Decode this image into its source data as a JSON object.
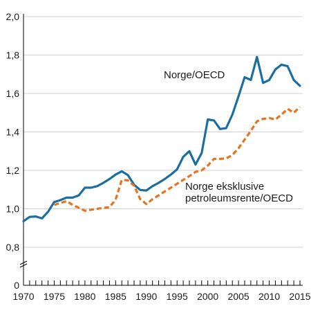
{
  "chart_data": {
    "type": "line",
    "title": "",
    "xlabel": "",
    "ylabel": "",
    "xlim": [
      1970,
      2015
    ],
    "ylim": [
      0.8,
      2.0
    ],
    "y_axis_break": true,
    "y_zero_label": "0",
    "grid": "horizontal",
    "x_ticks": [
      "1970",
      "1975",
      "1980",
      "1985",
      "1990",
      "1995",
      "2000",
      "2005",
      "2010",
      "2015"
    ],
    "y_ticks": [
      "2,0",
      "1,8",
      "1,6",
      "1,4",
      "1,2",
      "1,0",
      "0,8"
    ],
    "x": [
      1970,
      1971,
      1972,
      1973,
      1974,
      1975,
      1976,
      1977,
      1978,
      1979,
      1980,
      1981,
      1982,
      1983,
      1984,
      1985,
      1986,
      1987,
      1988,
      1989,
      1990,
      1991,
      1992,
      1993,
      1994,
      1995,
      1996,
      1997,
      1998,
      1999,
      2000,
      2001,
      2002,
      2003,
      2004,
      2005,
      2006,
      2007,
      2008,
      2009,
      2010,
      2011,
      2012,
      2013,
      2014,
      2015
    ],
    "series": [
      {
        "name": "Norge/OECD",
        "color": "#1a6fa0",
        "style": "solid",
        "values": [
          0.935,
          0.958,
          0.96,
          0.95,
          0.985,
          1.035,
          1.045,
          1.058,
          1.058,
          1.07,
          1.11,
          1.11,
          1.118,
          1.135,
          1.155,
          1.178,
          1.195,
          1.175,
          1.125,
          1.098,
          1.095,
          1.118,
          1.135,
          1.155,
          1.178,
          1.205,
          1.27,
          1.3,
          1.23,
          1.29,
          1.465,
          1.46,
          1.415,
          1.42,
          1.49,
          1.585,
          1.685,
          1.67,
          1.79,
          1.655,
          1.67,
          1.725,
          1.75,
          1.742,
          1.67,
          1.64
        ]
      },
      {
        "name": "Norge eksklusive petroleumsrente/OECD",
        "color": "#e8731c",
        "style": "dashed",
        "values": [
          null,
          null,
          null,
          null,
          null,
          1.02,
          1.03,
          1.04,
          1.02,
          1.005,
          0.99,
          0.995,
          1.0,
          1.005,
          1.008,
          1.048,
          1.15,
          1.148,
          1.12,
          1.05,
          1.025,
          1.05,
          1.07,
          1.09,
          1.11,
          1.13,
          1.15,
          1.17,
          1.192,
          1.2,
          1.225,
          1.26,
          1.26,
          1.262,
          1.28,
          1.315,
          1.36,
          1.405,
          1.455,
          1.468,
          1.472,
          1.465,
          1.49,
          1.52,
          1.5,
          1.53
        ]
      }
    ],
    "labels": {
      "series1": "Norge/OECD",
      "series2_line1": "Norge eksklusive",
      "series2_line2": "petroleumsrente/OECD"
    }
  }
}
